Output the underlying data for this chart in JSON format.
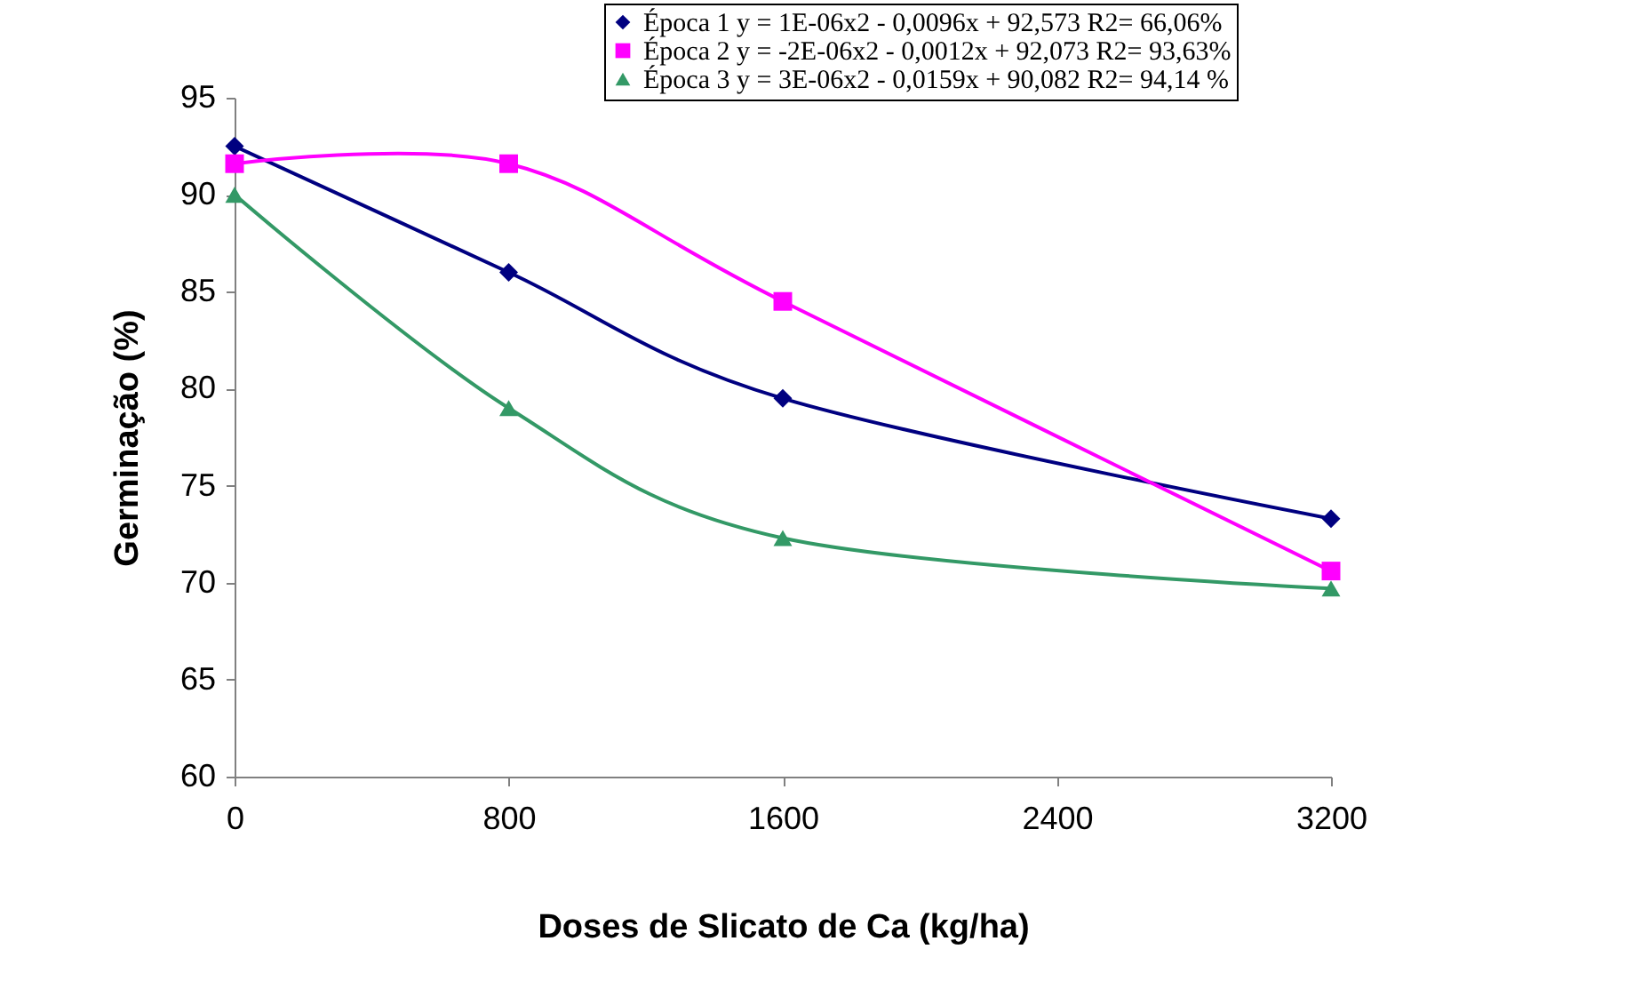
{
  "chart_data": {
    "type": "line",
    "xlabel": "Doses de Slicato de Ca (kg/ha)",
    "ylabel": "Germinação (%)",
    "x": [
      0,
      800,
      1600,
      3200
    ],
    "series": [
      {
        "name": "Época 1 y = 1E-06x2 - 0,0096x + 92,573 R2= 66,06%",
        "color": "#000080",
        "marker": "diamond",
        "values": [
          92.5,
          86.0,
          79.5,
          73.3
        ]
      },
      {
        "name": "Época 2 y = -2E-06x2 - 0,0012x + 92,073 R2= 93,63%",
        "color": "#ff00ff",
        "marker": "square",
        "values": [
          91.6,
          91.6,
          84.5,
          70.6
        ]
      },
      {
        "name": "Época 3 y = 3E-06x2 - 0,0159x + 90,082 R2= 94,14 %",
        "color": "#339966",
        "marker": "triangle",
        "values": [
          90.0,
          79.0,
          72.3,
          69.7
        ]
      }
    ],
    "xlim": [
      0,
      3200
    ],
    "xticks": [
      0,
      800,
      1600,
      2400,
      3200
    ],
    "ylim": [
      60,
      95
    ],
    "yticks": [
      60,
      65,
      70,
      75,
      80,
      85,
      90,
      95
    ],
    "grid": false,
    "legend": "top right"
  }
}
